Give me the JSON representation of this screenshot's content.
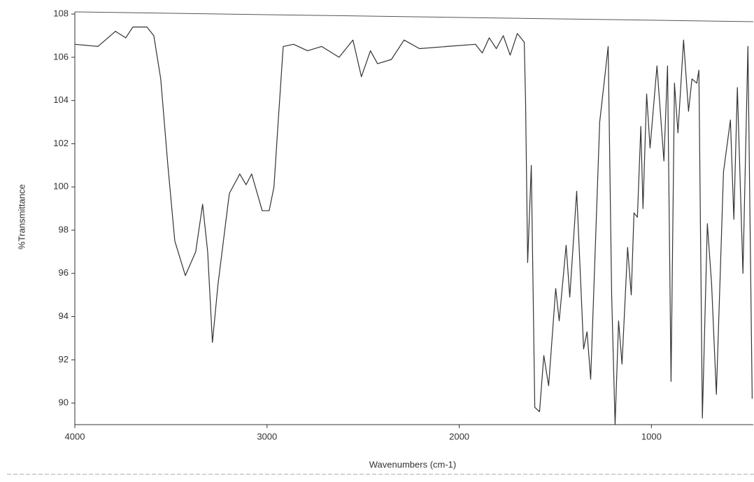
{
  "chart_data": {
    "type": "line",
    "x_label": "Wavenumbers (cm-1)",
    "y_label": "%Transmittance",
    "xlim": [
      4000,
      470
    ],
    "ylim": [
      89,
      108.1
    ],
    "xticks": [
      4000,
      3000,
      2000,
      1000
    ],
    "yticks": [
      90,
      92,
      94,
      96,
      98,
      100,
      102,
      104,
      106,
      108
    ],
    "series": [
      {
        "color": "#333333",
        "x": [
          4000,
          3880,
          3789,
          3735,
          3698,
          3625,
          3589,
          3553,
          3516,
          3480,
          3425,
          3371,
          3335,
          3309,
          3284,
          3255,
          3196,
          3142,
          3109,
          3080,
          3025,
          2989,
          2964,
          2942,
          2916,
          2862,
          2789,
          2716,
          2625,
          2553,
          2509,
          2462,
          2425,
          2353,
          2287,
          2207,
          2062,
          1916,
          1880,
          1844,
          1807,
          1771,
          1735,
          1698,
          1662,
          1655,
          1644,
          1625,
          1607,
          1582,
          1560,
          1535,
          1498,
          1480,
          1444,
          1425,
          1389,
          1353,
          1335,
          1316,
          1269,
          1225,
          1207,
          1189,
          1171,
          1153,
          1124,
          1105,
          1091,
          1073,
          1055,
          1044,
          1025,
          1007,
          971,
          935,
          916,
          898,
          880,
          862,
          833,
          807,
          789,
          764,
          753,
          735,
          709,
          687,
          662,
          625,
          589,
          571,
          553,
          524,
          498,
          476
        ],
        "values": [
          106.6,
          106.5,
          107.2,
          106.9,
          107.4,
          107.4,
          107.0,
          105,
          101,
          97.5,
          95.9,
          97,
          99.2,
          97,
          92.8,
          95.5,
          99.7,
          100.6,
          100.1,
          100.6,
          98.9,
          98.9,
          100,
          103,
          106.5,
          106.6,
          106.3,
          106.5,
          106.0,
          106.8,
          105.1,
          106.3,
          105.7,
          105.9,
          106.8,
          106.4,
          106.5,
          106.6,
          106.2,
          106.9,
          106.4,
          107.0,
          106.1,
          107.1,
          106.7,
          104,
          96.5,
          101,
          89.8,
          89.6,
          92.2,
          90.8,
          95.3,
          93.8,
          97.3,
          94.9,
          99.8,
          92.5,
          93.3,
          91.1,
          103,
          106.5,
          95,
          89.0,
          93.8,
          91.8,
          97.2,
          95,
          98.8,
          98.6,
          102.8,
          99,
          104.3,
          101.8,
          105.6,
          101.2,
          105.6,
          91,
          104.8,
          102.5,
          106.8,
          103.5,
          105,
          104.8,
          105.4,
          89.3,
          98.3,
          95.5,
          90.4,
          100.7,
          103.1,
          98.5,
          104.6,
          96,
          106.5,
          90.2
        ]
      }
    ]
  }
}
